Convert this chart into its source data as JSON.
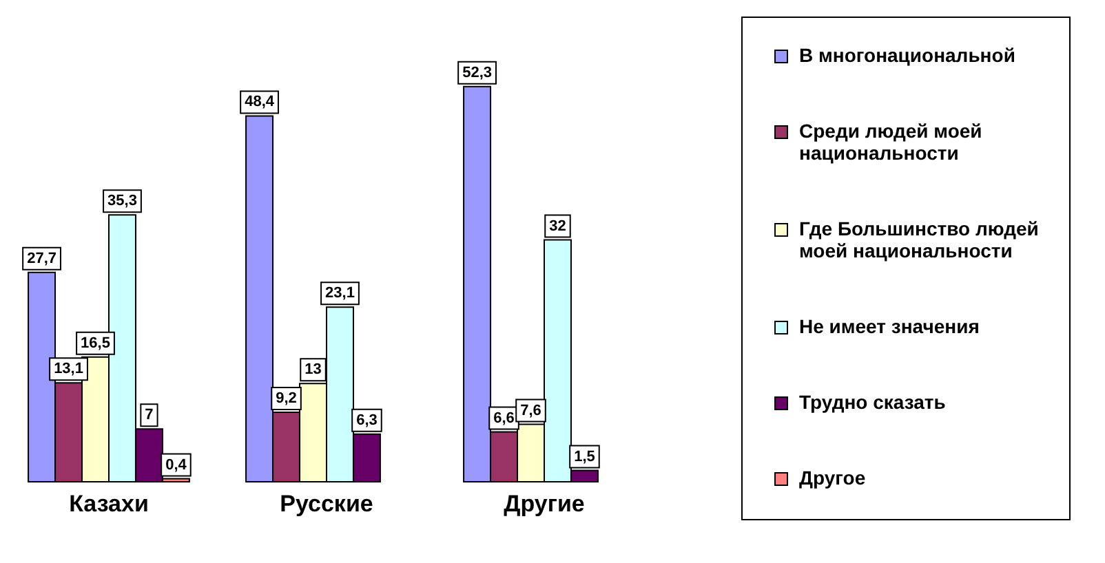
{
  "chart_data": {
    "type": "bar",
    "categories": [
      "Казахи",
      "Русские",
      "Другие"
    ],
    "series": [
      {
        "name": "В многонациональной",
        "color": "#9999ff",
        "values": [
          27.7,
          48.4,
          52.3
        ],
        "value_labels": [
          "27,7",
          "48,4",
          "52,3"
        ]
      },
      {
        "name": "Среди людей моей национальности",
        "color": "#993366",
        "values": [
          13.1,
          9.2,
          6.6
        ],
        "value_labels": [
          "13,1",
          "9,2",
          "6,6"
        ]
      },
      {
        "name": "Где Большинство людей моей национальности",
        "color": "#ffffcc",
        "values": [
          16.5,
          13,
          7.6
        ],
        "value_labels": [
          "16,5",
          "13",
          "7,6"
        ]
      },
      {
        "name": "Не имеет значения",
        "color": "#ccffff",
        "values": [
          35.3,
          23.1,
          32
        ],
        "value_labels": [
          "35,3",
          "23,1",
          "32"
        ]
      },
      {
        "name": "Трудно сказать",
        "color": "#660066",
        "values": [
          7,
          6.3,
          1.5
        ],
        "value_labels": [
          "7",
          "6,3",
          "1,5"
        ]
      },
      {
        "name": "Другое",
        "color": "#ff8080",
        "values": [
          0.4,
          null,
          null
        ],
        "value_labels": [
          "0,4",
          null,
          null
        ]
      }
    ],
    "legend": "right"
  }
}
